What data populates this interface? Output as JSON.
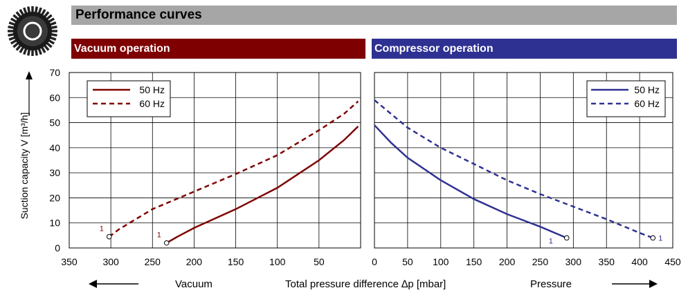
{
  "header": {
    "title": "Performance curves"
  },
  "sections": {
    "vacuum": "Vacuum operation",
    "compressor": "Compressor operation"
  },
  "colors": {
    "vacuum": "#7f0000",
    "compressor": "#2e3192",
    "title_bar": "#a6a6a6"
  },
  "bottom": {
    "left_label": "Vacuum",
    "center_label": "Total pressure difference ∆p  [mbar]",
    "right_label": "Pressure"
  },
  "chart_data": [
    {
      "type": "line",
      "title": "Vacuum operation",
      "ylabel": "Suction capacity V [m³/h]",
      "xlabel": "Total pressure difference ∆p  [mbar]",
      "xlim": [
        350,
        0
      ],
      "ylim": [
        0,
        70
      ],
      "xticks": [
        350,
        300,
        250,
        200,
        150,
        100,
        50
      ],
      "yticks": [
        0,
        10,
        20,
        30,
        40,
        50,
        60,
        70
      ],
      "legend": "top-left",
      "series": [
        {
          "name": "50 Hz",
          "style": "solid",
          "x": [
            233,
            220,
            200,
            150,
            100,
            50,
            20,
            3
          ],
          "y": [
            2,
            4.5,
            8,
            15.5,
            24,
            35,
            43,
            48.5
          ],
          "marker": {
            "x": 233,
            "y": 2,
            "label": "1"
          }
        },
        {
          "name": "60 Hz",
          "style": "dashed",
          "x": [
            302,
            290,
            250,
            200,
            150,
            100,
            50,
            20,
            3
          ],
          "y": [
            4.5,
            7.5,
            15.5,
            22.5,
            29.5,
            37,
            47,
            53.5,
            58.5
          ],
          "marker": {
            "x": 302,
            "y": 4.5,
            "label": "1"
          }
        }
      ]
    },
    {
      "type": "line",
      "title": "Compressor operation",
      "xlabel": "Total pressure difference ∆p  [mbar]",
      "xlim": [
        0,
        450
      ],
      "ylim": [
        0,
        70
      ],
      "xticks": [
        0,
        50,
        100,
        150,
        200,
        250,
        300,
        350,
        400,
        450
      ],
      "legend": "top-right",
      "series": [
        {
          "name": "50 Hz",
          "style": "solid",
          "x": [
            0,
            25,
            50,
            100,
            150,
            200,
            250,
            290
          ],
          "y": [
            49,
            42,
            36,
            27,
            19.5,
            13.5,
            8.5,
            4
          ],
          "marker": {
            "x": 290,
            "y": 4,
            "label": "1"
          }
        },
        {
          "name": "60 Hz",
          "style": "dashed",
          "x": [
            0,
            50,
            100,
            150,
            200,
            250,
            300,
            350,
            400,
            420
          ],
          "y": [
            59,
            48,
            40,
            33.5,
            27,
            21.5,
            16.5,
            11.5,
            6,
            4
          ],
          "marker": {
            "x": 420,
            "y": 4,
            "label": "1"
          }
        }
      ]
    }
  ]
}
